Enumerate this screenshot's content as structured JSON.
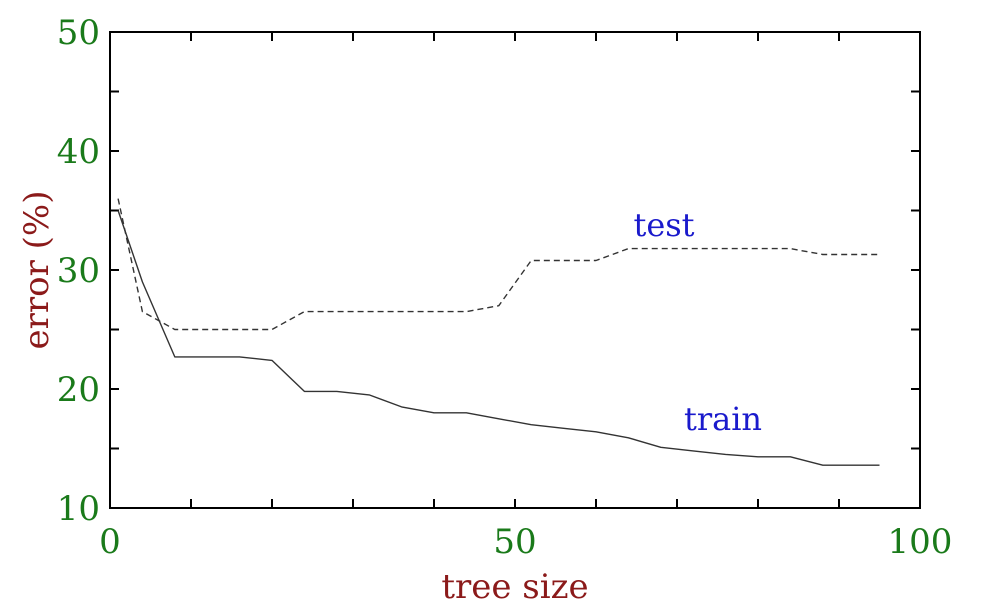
{
  "chart_data": {
    "type": "line",
    "xlabel": "tree size",
    "ylabel": "error (%)",
    "xlim": [
      0,
      100
    ],
    "ylim": [
      10,
      50
    ],
    "xticks": [
      0,
      50,
      100
    ],
    "yticks": [
      10,
      20,
      30,
      40,
      50
    ],
    "grid": false,
    "colors": {
      "tick_labels": "#1a7a1a",
      "axis_labels": "#8b1a1a",
      "series_labels": "#1a1acc",
      "lines": "#333333"
    },
    "series": [
      {
        "name": "test",
        "line_style": "dashed",
        "x": [
          1,
          4,
          8,
          12,
          16,
          20,
          24,
          28,
          32,
          36,
          40,
          44,
          48,
          52,
          56,
          60,
          64,
          68,
          72,
          76,
          80,
          84,
          88,
          92,
          95
        ],
        "y": [
          36,
          26.5,
          25,
          25,
          25,
          25,
          26.5,
          26.5,
          26.5,
          26.5,
          26.5,
          26.5,
          27,
          30.8,
          30.8,
          30.8,
          31.8,
          31.8,
          31.8,
          31.8,
          31.8,
          31.8,
          31.3,
          31.3,
          31.3
        ]
      },
      {
        "name": "train",
        "line_style": "solid",
        "x": [
          1,
          4,
          8,
          12,
          16,
          20,
          24,
          28,
          32,
          36,
          40,
          44,
          48,
          52,
          56,
          60,
          64,
          68,
          72,
          76,
          80,
          84,
          88,
          92,
          95
        ],
        "y": [
          35,
          29,
          22.7,
          22.7,
          22.7,
          22.4,
          19.8,
          19.8,
          19.5,
          18.5,
          18,
          18,
          17.5,
          17,
          16.7,
          16.4,
          15.9,
          15.1,
          14.8,
          14.5,
          14.3,
          14.3,
          13.6,
          13.6,
          13.6
        ]
      }
    ]
  }
}
